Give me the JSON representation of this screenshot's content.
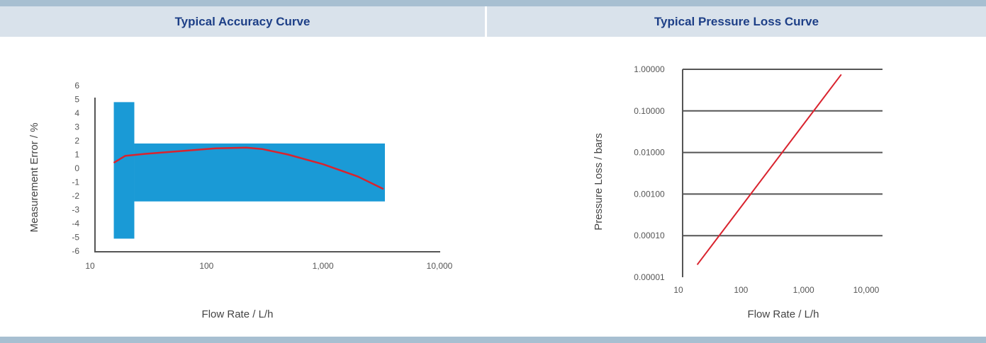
{
  "headers": {
    "left": "Typical Accuracy Curve",
    "right": "Typical Pressure Loss Curve"
  },
  "colors": {
    "header_bg": "#d9e2eb",
    "header_text": "#1d3f87",
    "rule": "#a7bfd1",
    "band": "#1a9ad6",
    "curve": "#d9232e",
    "axis": "#555555"
  },
  "chart_data": [
    {
      "type": "area",
      "title": "Typical Accuracy Curve",
      "xlabel": "Flow Rate / L/h",
      "ylabel": "Measurement Error / %",
      "xscale": "log",
      "xlim": [
        10,
        10000
      ],
      "ylim": [
        -6,
        6
      ],
      "xticks": [
        "10",
        "100",
        "1,000",
        "10,000"
      ],
      "xtick_values": [
        10,
        100,
        1000,
        10000
      ],
      "yticks": [
        "6",
        "5",
        "4",
        "3",
        "2",
        "1",
        "0",
        "-1",
        "-2",
        "-3",
        "-4",
        "-5",
        "-6"
      ],
      "ytick_values": [
        6,
        5,
        4,
        3,
        2,
        1,
        0,
        -1,
        -2,
        -3,
        -4,
        -5,
        -6
      ],
      "tolerance_band": [
        {
          "x_from": 16,
          "x_to": 24,
          "y_from": -5.1,
          "y_to": 4.8
        },
        {
          "x_from": 24,
          "x_to": 3400,
          "y_from": -2.4,
          "y_to": 1.8
        }
      ],
      "series": [
        {
          "x": [
            16,
            20,
            30,
            60,
            120,
            220,
            300,
            500,
            1000,
            2000,
            3300
          ],
          "y": [
            0.4,
            0.9,
            1.05,
            1.25,
            1.45,
            1.5,
            1.4,
            1.0,
            0.3,
            -0.6,
            -1.5
          ]
        }
      ]
    },
    {
      "type": "line",
      "title": "Typical Pressure Loss Curve",
      "xlabel": "Flow Rate / L/h",
      "ylabel": "Pressure Loss / bars",
      "xscale": "log",
      "yscale": "log",
      "xlim": [
        10,
        10000
      ],
      "ylim": [
        1e-05,
        1
      ],
      "xticks": [
        "10",
        "100",
        "1,000",
        "10,000"
      ],
      "xtick_values": [
        10,
        100,
        1000,
        10000
      ],
      "yticks": [
        "1.00000",
        "0.10000",
        "0.01000",
        "0.00100",
        "0.00010",
        "0.00001"
      ],
      "ytick_values": [
        1,
        0.1,
        0.01,
        0.001,
        0.0001,
        1e-05
      ],
      "grid": true,
      "series": [
        {
          "x": [
            20,
            4000
          ],
          "y": [
            2e-05,
            0.75
          ]
        }
      ]
    }
  ]
}
